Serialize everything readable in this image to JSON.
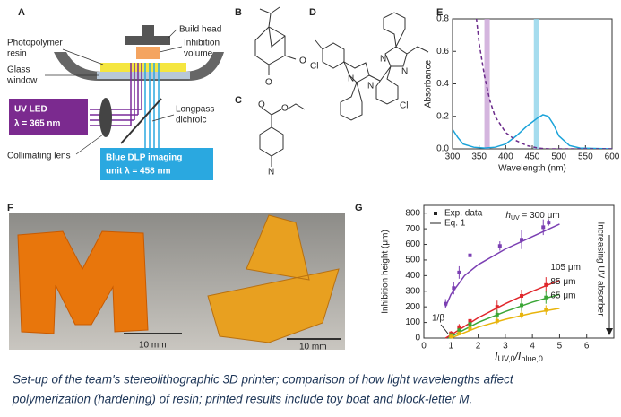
{
  "panel_a": {
    "label": "A",
    "build_head": "Build head",
    "resin": [
      "Photopolymer",
      "resin"
    ],
    "inhibition": [
      "Inhibition",
      "volume"
    ],
    "glass": [
      "Glass",
      "window"
    ],
    "uv_led": [
      "UV LED",
      "λ = 365 nm"
    ],
    "dichroic": [
      "Longpass",
      "dichroic"
    ],
    "lens": "Collimating lens",
    "dlp": [
      "Blue DLP imaging",
      "unit λ = 458 nm"
    ]
  },
  "panel_b": {
    "label": "B",
    "atoms": [
      "O",
      "O"
    ]
  },
  "panel_c": {
    "label": "C",
    "atoms": [
      "O",
      "O",
      "N"
    ]
  },
  "panel_d": {
    "label": "D",
    "atoms": [
      "Cl",
      "N",
      "N",
      "N",
      "N",
      "Cl"
    ]
  },
  "panel_f": {
    "label": "F",
    "scale_bars": [
      "10 mm",
      "10 mm"
    ]
  },
  "chart_data": [
    {
      "type": "line",
      "panel": "E",
      "y_label": "Absorbance",
      "x_label": "Wavelength (nm)",
      "xlim": [
        300,
        600
      ],
      "ylim": [
        0,
        0.8
      ],
      "xticks": [
        300,
        350,
        400,
        450,
        500,
        550,
        600
      ],
      "yticks": [
        {
          "value": 0,
          "label": "0.0"
        },
        0.2,
        0.4,
        0.6,
        0.8
      ],
      "bands": [
        {
          "x": 365,
          "color": "#c9a3d6"
        },
        {
          "x": 458,
          "color": "#8fd3ea"
        }
      ],
      "series": [
        {
          "color": "#1aa3d9",
          "dash": false,
          "x": [
            300,
            310,
            320,
            340,
            360,
            380,
            400,
            420,
            440,
            460,
            470,
            480,
            490,
            500,
            520,
            540,
            600
          ],
          "values": [
            0.12,
            0.07,
            0.03,
            0.01,
            0.005,
            0.01,
            0.03,
            0.08,
            0.14,
            0.19,
            0.21,
            0.2,
            0.15,
            0.08,
            0.02,
            0.005,
            0
          ]
        },
        {
          "color": "#6a2a8a",
          "dash": true,
          "x": [
            345,
            350,
            360,
            370,
            380,
            400,
            420,
            440,
            460,
            480,
            600
          ],
          "values": [
            0.8,
            0.65,
            0.45,
            0.3,
            0.2,
            0.1,
            0.05,
            0.02,
            0.005,
            0,
            0
          ]
        }
      ]
    },
    {
      "type": "scatter",
      "panel": "G",
      "y_label": "Inhibition height (μm)",
      "x_label_parts": [
        "I",
        "UV,0",
        "/I",
        "blue,0"
      ],
      "xlim": [
        0,
        7
      ],
      "ylim": [
        0,
        850
      ],
      "xticks": [
        0,
        1,
        2,
        3,
        4,
        5,
        6
      ],
      "yticks": [
        0,
        100,
        200,
        300,
        400,
        500,
        600,
        700,
        800
      ],
      "legend": [
        "Exp. data",
        "Eq. 1"
      ],
      "beta_label": "1/β",
      "arrow_label": "Increasing UV absorber",
      "series": [
        {
          "color": "#7b3fb3",
          "label_parts": [
            "h",
            "UV",
            " = 300 μm"
          ],
          "x": [
            0.8,
            1.1,
            1.3,
            1.7,
            2.8,
            3.6,
            4.4,
            4.6
          ],
          "values": [
            220,
            320,
            420,
            530,
            590,
            630,
            710,
            740
          ],
          "errors": [
            30,
            40,
            40,
            60,
            30,
            60,
            50,
            20
          ],
          "fit_x": [
            0.8,
            1,
            1.5,
            2,
            3,
            4,
            5
          ],
          "fit_values": [
            200,
            280,
            400,
            470,
            570,
            650,
            730
          ]
        },
        {
          "color": "#e0262b",
          "label": "105 μm",
          "x": [
            1,
            1.3,
            1.7,
            2.7,
            3.6,
            4.5
          ],
          "values": [
            30,
            70,
            110,
            200,
            270,
            340
          ],
          "errors": [
            15,
            20,
            30,
            40,
            40,
            50
          ],
          "fit_x": [
            0.8,
            1,
            2,
            3,
            4,
            5
          ],
          "fit_values": [
            0,
            20,
            130,
            220,
            300,
            370
          ]
        },
        {
          "color": "#3aa636",
          "label": "85 μm",
          "x": [
            1,
            1.3,
            1.7,
            2.7,
            3.6,
            4.5
          ],
          "values": [
            20,
            50,
            90,
            150,
            210,
            260
          ],
          "errors": [
            10,
            15,
            20,
            30,
            40,
            40
          ],
          "fit_x": [
            0.9,
            2,
            3,
            4,
            5
          ],
          "fit_values": [
            0,
            100,
            170,
            230,
            280
          ]
        },
        {
          "color": "#e8b40c",
          "label": "65 μm",
          "x": [
            1,
            1.3,
            1.7,
            2.7,
            3.6,
            4.5
          ],
          "values": [
            10,
            30,
            60,
            110,
            150,
            180
          ],
          "errors": [
            10,
            10,
            15,
            20,
            25,
            30
          ],
          "fit_x": [
            1,
            2,
            3,
            4,
            5
          ],
          "fit_values": [
            0,
            70,
            120,
            160,
            190
          ]
        }
      ]
    }
  ],
  "caption": [
    "Set-up of the team's stereolithographic 3D printer; comparison of how light wavelengths affect",
    "polymerization (hardening) of resin; printed results include toy boat and block-letter M."
  ]
}
